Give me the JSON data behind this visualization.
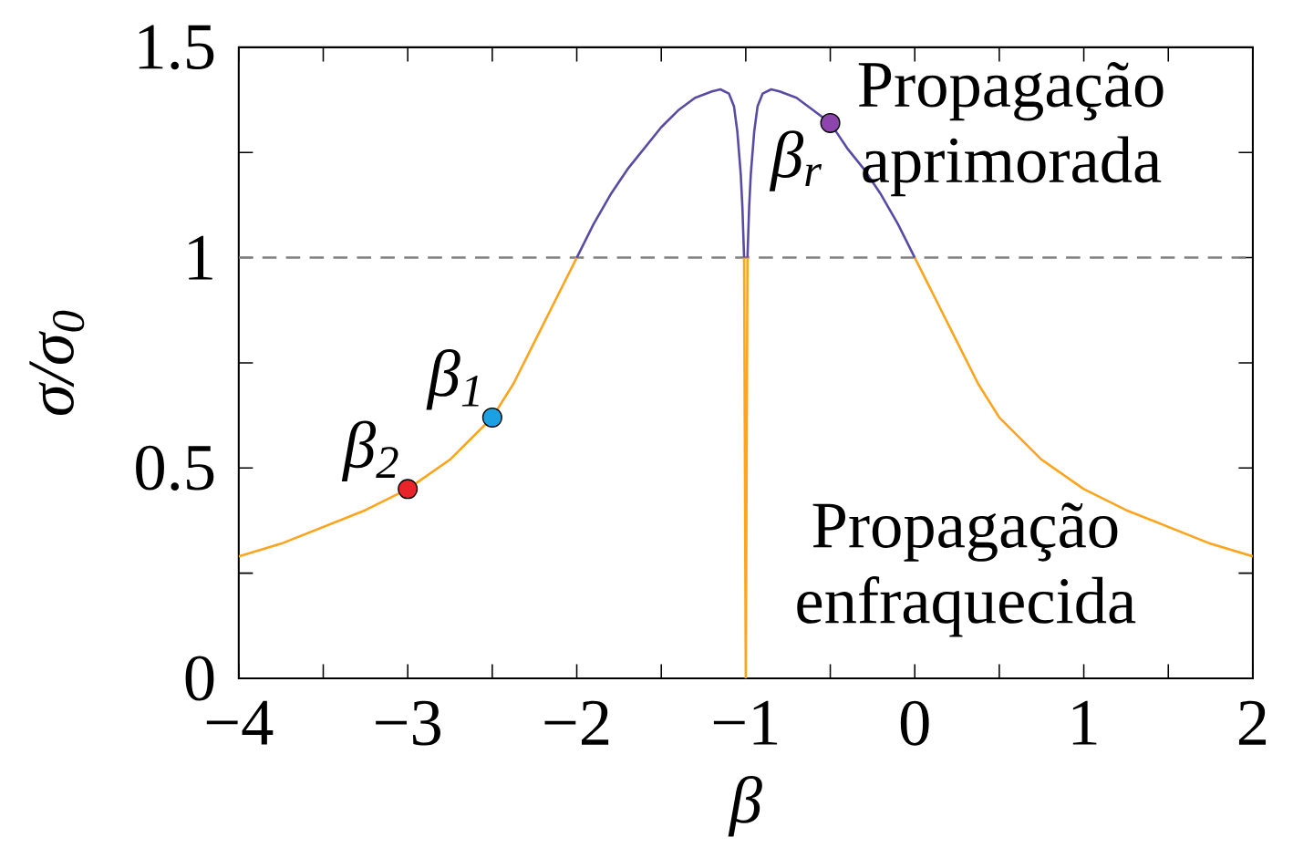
{
  "chart_data": {
    "type": "line",
    "xlabel": "β",
    "ylabel": "σ/σ$_{0}$",
    "xlim": [
      -4,
      2
    ],
    "ylim": [
      0,
      1.5
    ],
    "xticks": [
      {
        "value": -4,
        "label": "−4"
      },
      {
        "value": -3.5,
        "label": null
      },
      {
        "value": -3,
        "label": "−3"
      },
      {
        "value": -2.5,
        "label": null
      },
      {
        "value": -2,
        "label": "−2"
      },
      {
        "value": -1.5,
        "label": null
      },
      {
        "value": -1,
        "label": "−1"
      },
      {
        "value": -0.5,
        "label": null
      },
      0,
      {
        "value": 0.5,
        "label": null
      },
      1,
      {
        "value": 1.5,
        "label": null
      },
      2
    ],
    "yticks": [
      0,
      {
        "value": 0.25,
        "label": null
      },
      0.5,
      {
        "value": 0.75,
        "label": null
      },
      1,
      {
        "value": 1.25,
        "label": null
      },
      1.5
    ],
    "series": [
      {
        "color": "#ffa41b",
        "x": [
          -4,
          -3.75,
          -3.5,
          -3.25,
          -3,
          -2.75,
          -2.5,
          -2.375,
          -2.25,
          -2.125,
          -2,
          null,
          -1.01,
          -1.0,
          -0.99,
          null,
          0,
          0.125,
          0.25,
          0.375,
          0.5,
          0.75,
          1,
          1.25,
          1.5,
          1.75,
          2
        ],
        "values": [
          0.29,
          0.32,
          0.36,
          0.4,
          0.45,
          0.52,
          0.62,
          0.7,
          0.8,
          0.9,
          1.0,
          null,
          1.0,
          0,
          1.0,
          null,
          1.0,
          0.9,
          0.8,
          0.7,
          0.62,
          0.52,
          0.45,
          0.4,
          0.36,
          0.32,
          0.29
        ]
      },
      {
        "color": "#5a4aa6",
        "x": [
          -2,
          -1.9,
          -1.8,
          -1.7,
          -1.6,
          -1.5,
          -1.4,
          -1.3,
          -1.2,
          -1.15,
          -1.1,
          -1.07,
          -1.05,
          -1.03,
          -1.02,
          -1.01,
          null,
          -0.99,
          -0.98,
          -0.97,
          -0.95,
          -0.93,
          -0.9,
          -0.85,
          -0.8,
          -0.7,
          -0.6,
          -0.5,
          -0.4,
          -0.3,
          -0.2,
          -0.1,
          0
        ],
        "values": [
          1.0,
          1.08,
          1.15,
          1.21,
          1.26,
          1.31,
          1.35,
          1.38,
          1.395,
          1.4,
          1.39,
          1.36,
          1.3,
          1.2,
          1.12,
          1.0,
          null,
          1.0,
          1.12,
          1.2,
          1.3,
          1.36,
          1.39,
          1.4,
          1.395,
          1.38,
          1.35,
          1.32,
          1.26,
          1.21,
          1.15,
          1.08,
          1.0
        ]
      },
      {
        "type": "scatter",
        "name": "β$_{2}$",
        "color": "#e8232a",
        "x": [
          -3
        ],
        "values": [
          0.45
        ]
      },
      {
        "type": "scatter",
        "name": "β$_{1}$",
        "color": "#1ba1e2",
        "x": [
          -2.5
        ],
        "values": [
          0.62
        ]
      },
      {
        "type": "scatter",
        "name": "β$_{r}$",
        "color": "#8e44ad",
        "x": [
          -0.5
        ],
        "values": [
          1.32
        ]
      }
    ],
    "ref_lines": [
      {
        "axis": "y",
        "value": 1,
        "color": "#808080",
        "line_style": "dashed"
      }
    ],
    "annotations": [
      "Propagação aprimorada",
      "Propagação enfraquecida"
    ]
  }
}
